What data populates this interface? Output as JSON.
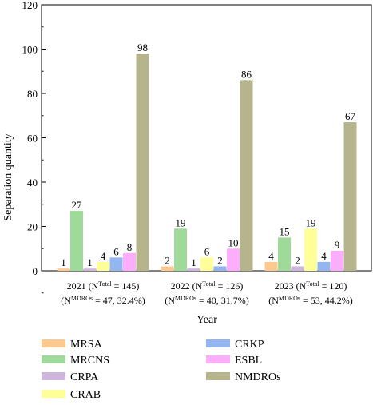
{
  "chart_data": {
    "type": "bar",
    "title": "",
    "xlabel": "Year",
    "ylabel": "Separation quantity",
    "ylim": [
      0,
      120
    ],
    "yticks": [
      0,
      20,
      40,
      60,
      80,
      100,
      120
    ],
    "grid": false,
    "legend_position": "bottom",
    "categories": [
      {
        "year": "2021",
        "total_prefix": " (N",
        "total_sup": "Total",
        "total_suffix": " = 145)",
        "mdro_prefix": "(N",
        "mdro_sup": "MDROs",
        "mdro_suffix": " = 47, 32.4%)"
      },
      {
        "year": "2022",
        "total_prefix": " (N",
        "total_sup": "Total",
        "total_suffix": " = 126)",
        "mdro_prefix": "(N",
        "mdro_sup": "MDROs",
        "mdro_suffix": " = 40, 31.7%)"
      },
      {
        "year": "2023",
        "total_prefix": " (N",
        "total_sup": "Total",
        "total_suffix": " = 120)",
        "mdro_prefix": "(N",
        "mdro_sup": "MDROs",
        "mdro_suffix": " = 53, 44.2%)"
      }
    ],
    "series": [
      {
        "name": "MRSA",
        "color": "#fdc98f",
        "values": [
          1,
          2,
          4
        ]
      },
      {
        "name": "MRCNS",
        "color": "#9fda9a",
        "values": [
          27,
          19,
          15
        ]
      },
      {
        "name": "CRPA",
        "color": "#cdb6d9",
        "values": [
          1,
          1,
          2
        ]
      },
      {
        "name": "CRAB",
        "color": "#ffff99",
        "values": [
          4,
          6,
          19
        ]
      },
      {
        "name": "CRKP",
        "color": "#93b6f0",
        "values": [
          6,
          2,
          4
        ]
      },
      {
        "name": "ESBL",
        "color": "#fcaefc",
        "values": [
          8,
          10,
          9
        ]
      },
      {
        "name": "NMDROs",
        "color": "#b5b48d",
        "values": [
          98,
          86,
          67
        ]
      }
    ]
  }
}
